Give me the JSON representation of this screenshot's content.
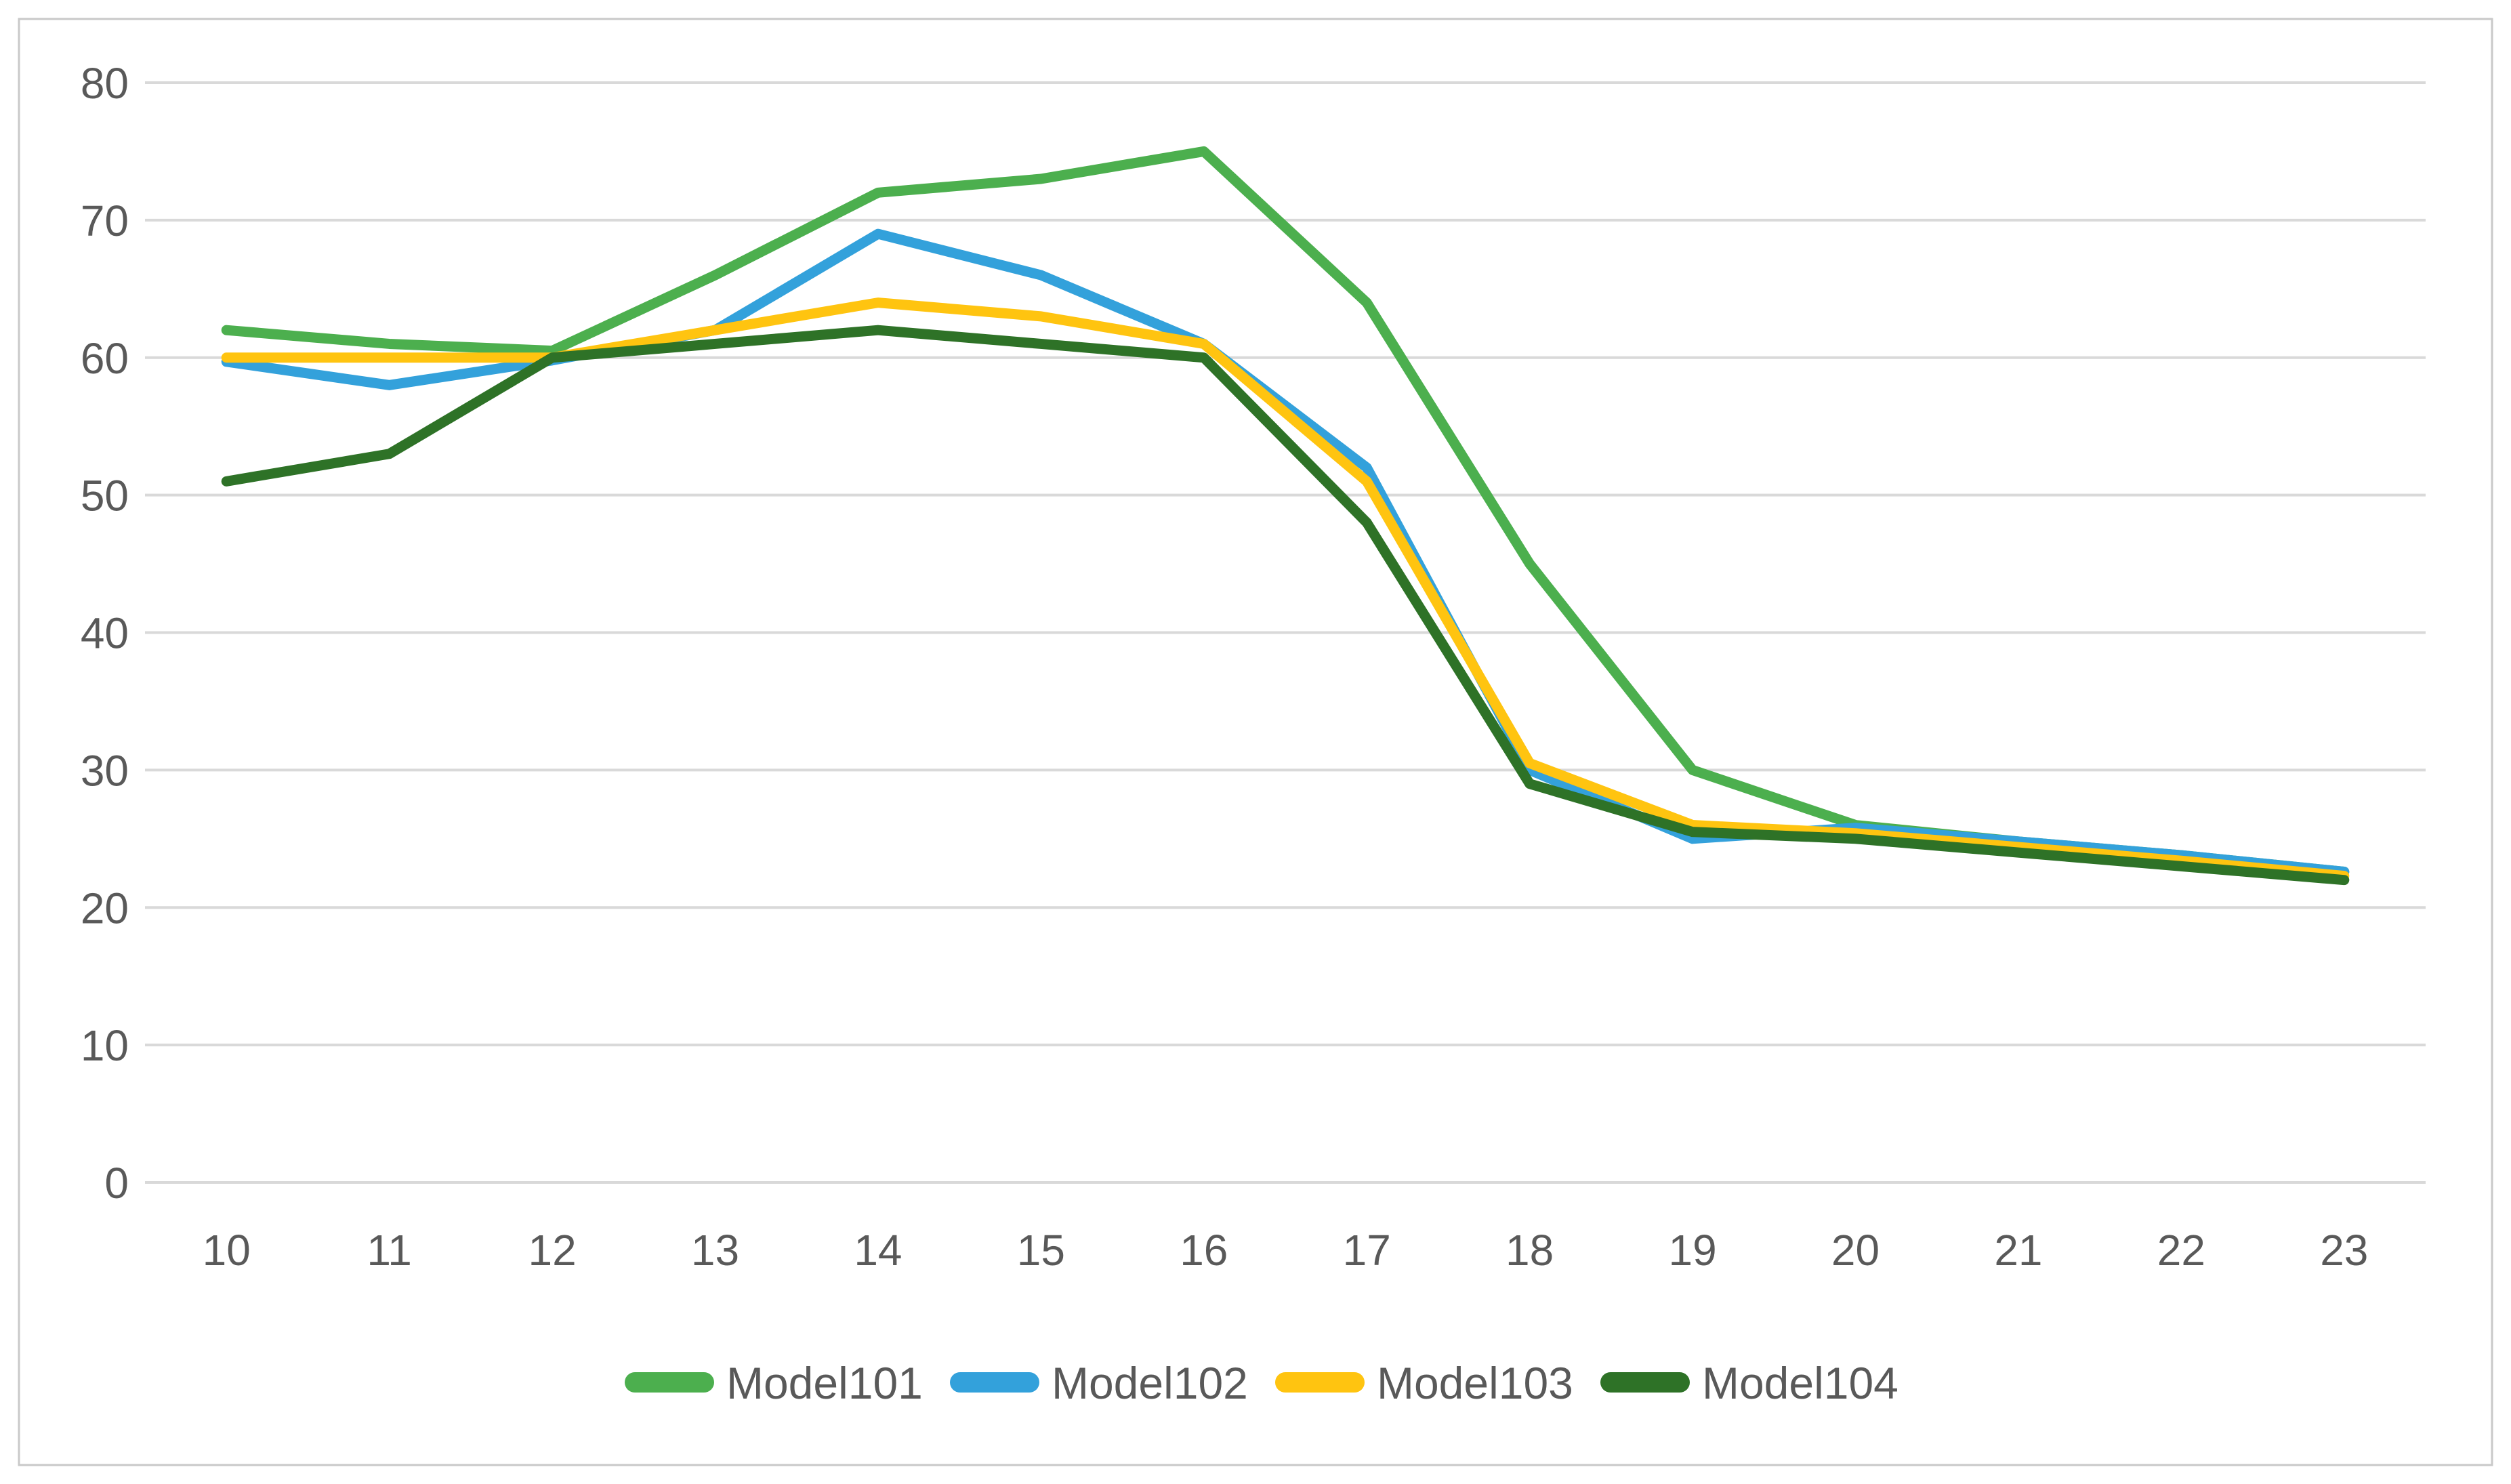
{
  "chart_data": {
    "type": "line",
    "title": "",
    "xlabel": "",
    "ylabel": "",
    "x_categories": [
      "10",
      "11",
      "12",
      "13",
      "14",
      "15",
      "16",
      "17",
      "18",
      "19",
      "20",
      "21",
      "22",
      "23"
    ],
    "y_ticks": [
      "0",
      "10",
      "20",
      "30",
      "40",
      "50",
      "60",
      "70",
      "80"
    ],
    "ylim": [
      0,
      80
    ],
    "grid": "horizontal",
    "legend_position": "bottom",
    "series": [
      {
        "name": "Model101",
        "color": "#4CAF4E",
        "values": [
          62,
          61,
          60.5,
          66,
          72,
          73,
          75,
          64,
          45,
          30,
          26,
          24.8,
          23.8,
          22.6
        ]
      },
      {
        "name": "Model102",
        "color": "#33A1DB",
        "values": [
          59.7,
          58,
          59.8,
          62,
          69,
          66,
          61,
          52,
          30,
          25,
          25.8,
          24.8,
          23.8,
          22.6
        ]
      },
      {
        "name": "Model103",
        "color": "#FFC410",
        "values": [
          60,
          60,
          60,
          62,
          64,
          63,
          61,
          51,
          30.5,
          26,
          25.4,
          24.4,
          23.4,
          22.3
        ]
      },
      {
        "name": "Model104",
        "color": "#2E7227",
        "values": [
          51,
          53,
          60,
          61,
          62,
          61,
          60,
          48,
          29,
          25.5,
          25.0,
          24.0,
          23.0,
          22.0
        ]
      }
    ]
  },
  "style": {
    "grid_color": "#D9D9D9",
    "text_color": "#595959",
    "border_color": "#C9C9C9",
    "background": "#FFFFFF",
    "line_width": 15,
    "axis_font_size": 64,
    "legend_font_size": 66
  }
}
